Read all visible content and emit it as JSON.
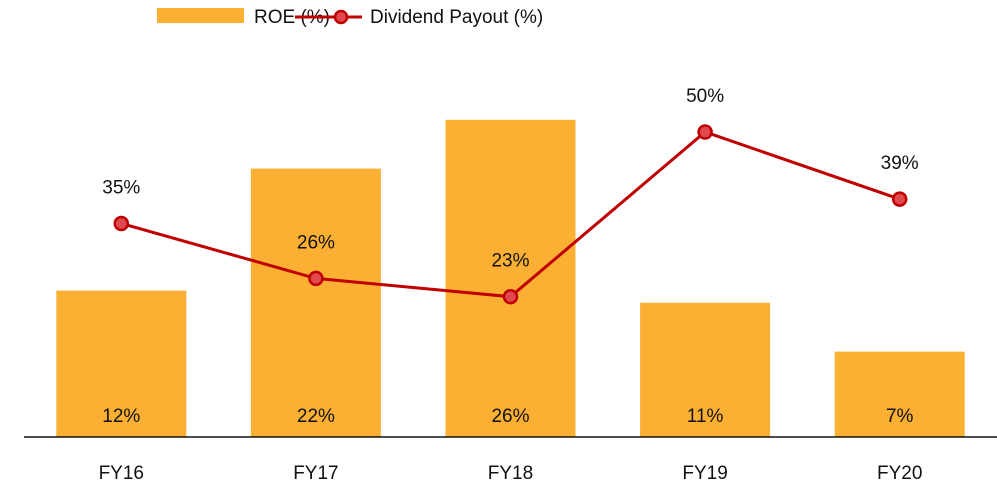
{
  "chart_data": {
    "type": "bar-line",
    "categories": [
      "FY16",
      "FY17",
      "FY18",
      "FY19",
      "FY20"
    ],
    "series": [
      {
        "name": "ROE (%)",
        "type": "bar",
        "color": "#fbb034",
        "values": [
          12,
          22,
          26,
          11,
          7
        ],
        "value_labels": [
          "12%",
          "22%",
          "26%",
          "11%",
          "7%"
        ]
      },
      {
        "name": "Dividend Payout (%)",
        "type": "line",
        "axis": "y2",
        "color": "#c00000",
        "values": [
          35,
          26,
          23,
          50,
          39
        ],
        "value_labels": [
          "35%",
          "26%",
          "23%",
          "50%",
          "39%"
        ]
      }
    ],
    "ylim": [
      0,
      35
    ],
    "y2lim": [
      0,
      70
    ],
    "legend": "top"
  }
}
